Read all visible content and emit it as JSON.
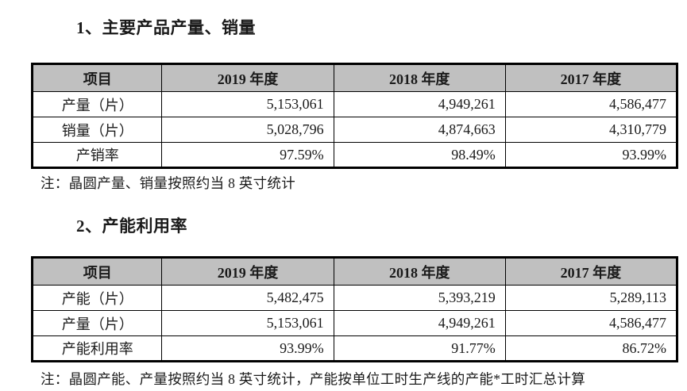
{
  "section1": {
    "title": "1、主要产品产量、销量",
    "headers": [
      "项目",
      "2019 年度",
      "2018 年度",
      "2017 年度"
    ],
    "rows": [
      {
        "label": "产量（片）",
        "values": [
          "5,153,061",
          "4,949,261",
          "4,586,477"
        ]
      },
      {
        "label": "销量（片）",
        "values": [
          "5,028,796",
          "4,874,663",
          "4,310,779"
        ]
      },
      {
        "label": "产销率",
        "values": [
          "97.59%",
          "98.49%",
          "93.99%"
        ]
      }
    ],
    "note": "注：晶圆产量、销量按照约当 8 英寸统计"
  },
  "section2": {
    "title": "2、产能利用率",
    "headers": [
      "项目",
      "2019 年度",
      "2018 年度",
      "2017 年度"
    ],
    "rows": [
      {
        "label": "产能（片）",
        "values": [
          "5,482,475",
          "5,393,219",
          "5,289,113"
        ]
      },
      {
        "label": "产量（片）",
        "values": [
          "5,153,061",
          "4,949,261",
          "4,586,477"
        ]
      },
      {
        "label": "产能利用率",
        "values": [
          "93.99%",
          "91.77%",
          "86.72%"
        ]
      }
    ],
    "note": "注：晶圆产能、产量按照约当 8 英寸统计，产能按单位工时生产线的产能*工时汇总计算"
  },
  "colors": {
    "header_bg": "#c0c0c0",
    "border": "#000000"
  }
}
